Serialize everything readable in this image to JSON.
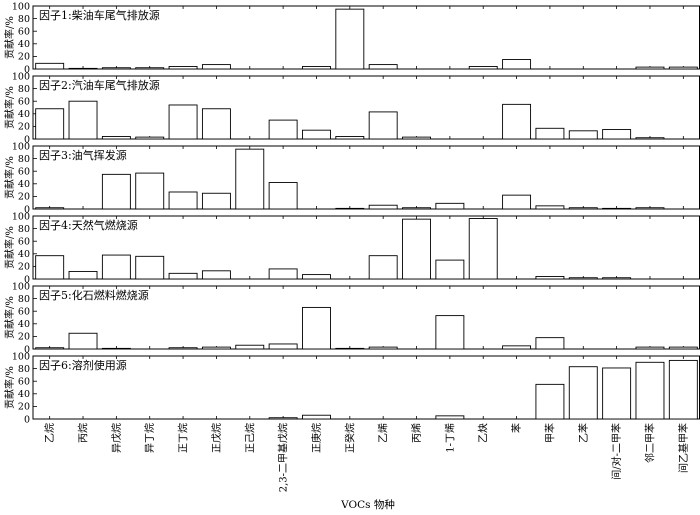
{
  "chart_data": {
    "type": "bar",
    "title": "",
    "xlabel": "VOCs 物种",
    "ylabel": "贡献率/%",
    "ylim": [
      0,
      100
    ],
    "yticks": [
      0,
      20,
      40,
      60,
      80,
      100
    ],
    "grid": false,
    "categories": [
      "乙烷",
      "丙烷",
      "异戊烷",
      "异丁烷",
      "正丁烷",
      "正戊烷",
      "正己烷",
      "2,3-二甲基戊烷",
      "正庚烷",
      "正癸烷",
      "乙烯",
      "丙烯",
      "1-丁烯",
      "乙炔",
      "苯",
      "甲苯",
      "乙苯",
      "间/对-二甲苯",
      "邻二甲苯",
      "间乙基甲苯"
    ],
    "series": [
      {
        "name": "因子1:柴油车尾气排放源",
        "values": [
          9,
          1,
          2,
          2,
          4,
          7,
          0,
          0,
          4,
          95,
          7,
          0,
          0,
          4,
          15,
          0,
          0,
          0,
          3,
          3
        ]
      },
      {
        "name": "因子2:汽油车尾气排放源",
        "values": [
          48,
          60,
          4,
          3,
          54,
          48,
          0,
          30,
          14,
          4,
          43,
          3,
          0,
          0,
          55,
          17,
          13,
          15,
          2,
          0
        ]
      },
      {
        "name": "因子3:油气挥发源",
        "values": [
          2,
          0,
          55,
          57,
          27,
          25,
          95,
          42,
          0,
          1,
          6,
          2,
          9,
          0,
          22,
          5,
          2,
          1,
          2,
          0
        ]
      },
      {
        "name": "因子4:天然气燃烧源",
        "values": [
          37,
          12,
          38,
          36,
          9,
          13,
          0,
          16,
          7,
          0,
          37,
          95,
          30,
          96,
          0,
          4,
          2,
          2,
          0,
          0
        ]
      },
      {
        "name": "因子5:化石燃料燃烧源",
        "values": [
          2,
          25,
          1,
          0,
          2,
          3,
          6,
          8,
          66,
          1,
          3,
          0,
          53,
          0,
          5,
          18,
          0,
          0,
          3,
          3
        ]
      },
      {
        "name": "因子6:溶剂使用源",
        "values": [
          0,
          0,
          0,
          0,
          0,
          0,
          0,
          2,
          6,
          0,
          0,
          0,
          5,
          0,
          0,
          55,
          83,
          81,
          90,
          93
        ]
      }
    ]
  }
}
